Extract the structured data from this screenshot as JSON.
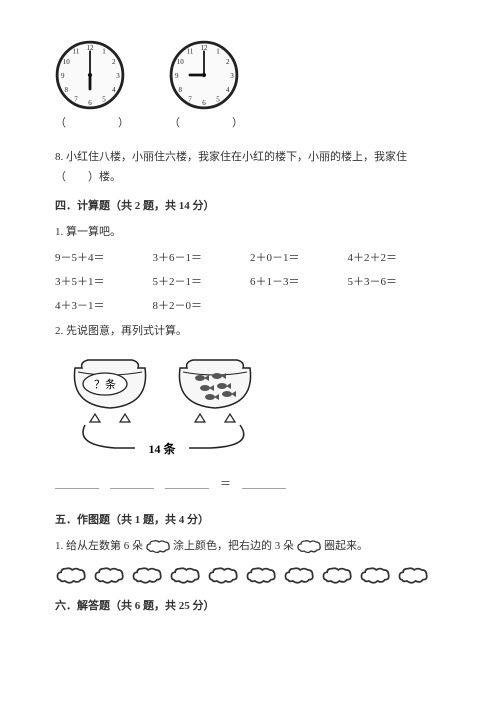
{
  "clock1": {
    "hour_angle": 180,
    "minute_angle": 0,
    "face": "#fafafa",
    "ring": "#222",
    "hand": "#111"
  },
  "clock2": {
    "hour_angle": 270,
    "minute_angle": 0,
    "face": "#fafafa",
    "ring": "#222",
    "hand": "#111"
  },
  "clock_caption": "（　　）",
  "q8": "8. 小红住八楼，小丽住六楼，我家住在小红的楼下，小丽的楼上，我家住（　　）楼。",
  "sec4_head": "四．计算题（共 2 题，共 14 分）",
  "q4_1": "1. 算一算吧。",
  "eq_rows": [
    [
      "9－5＋4＝",
      "3＋6－1＝",
      "2＋0－1＝",
      "4＋2＋2＝"
    ],
    [
      "3＋5＋1＝",
      "5＋2－1＝",
      "6＋1－3＝",
      "5＋3－6＝"
    ],
    [
      "4＋3－1＝",
      "8＋2－0＝",
      "",
      ""
    ]
  ],
  "q4_2": "2. 先说图意，再列式计算。",
  "fishbowl": {
    "label_left": "？条",
    "label_bottom": "14 条",
    "fish_count_right": 6,
    "bowl_stroke": "#222",
    "bowl_fill": "#f7f7f7",
    "fish_fill": "#555",
    "tie_stroke": "#222"
  },
  "eq_blank": "＿＿＿＿　＿＿＿＿　＿＿＿＿　＝　＿＿＿＿",
  "sec5_head": "五．作图题（共 1 题，共 4 分）",
  "q5_parts": {
    "a": "1. 给从左数第 6 朵",
    "b": "涂上颜色，把右边的 3 朵",
    "c": "圈起来。"
  },
  "cloud_count": 10,
  "cloud_stroke": "#333",
  "sec6_head": "六．解答题（共 6 题，共 25 分）"
}
